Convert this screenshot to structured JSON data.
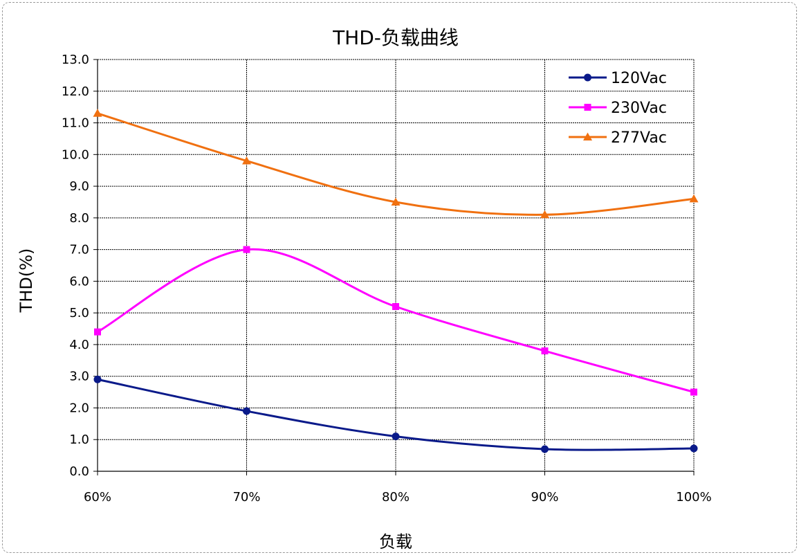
{
  "chart_data": {
    "type": "line",
    "title": "THD-负载曲线",
    "xlabel": "负载",
    "ylabel": "THD(%)",
    "categories": [
      "60%",
      "70%",
      "80%",
      "90%",
      "100%"
    ],
    "y_ticks": [
      "0.0",
      "1.0",
      "2.0",
      "3.0",
      "4.0",
      "5.0",
      "6.0",
      "7.0",
      "8.0",
      "9.0",
      "10.0",
      "11.0",
      "12.0",
      "13.0"
    ],
    "ylim": [
      0,
      13
    ],
    "grid": true,
    "legend_position": "top-right",
    "smooth": true,
    "series": [
      {
        "name": "120Vac",
        "color": "#0a1a8a",
        "marker": "circle",
        "values": [
          2.9,
          1.9,
          1.1,
          0.7,
          0.72
        ]
      },
      {
        "name": "230Vac",
        "color": "#ff00ff",
        "marker": "square",
        "values": [
          4.4,
          7.0,
          5.2,
          3.8,
          2.5
        ]
      },
      {
        "name": "277Vac",
        "color": "#f07010",
        "marker": "triangle",
        "values": [
          11.3,
          9.8,
          8.5,
          8.1,
          8.6
        ]
      }
    ]
  }
}
